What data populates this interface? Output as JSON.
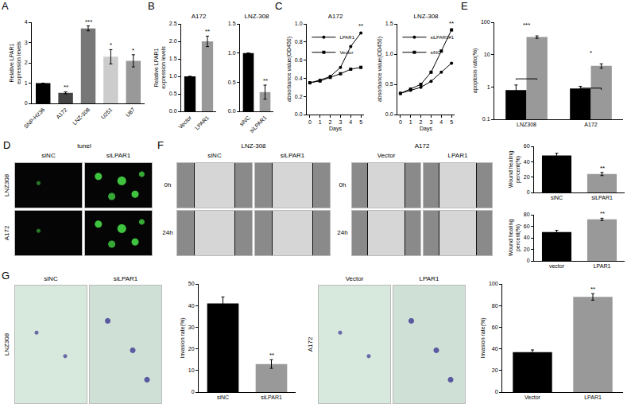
{
  "panel_letters": [
    "A",
    "B",
    "C",
    "D",
    "E",
    "F",
    "G"
  ],
  "chart_data": [
    {
      "type": "bar",
      "categories": [
        "SNP-H236",
        "A172",
        "LNZ-308",
        "U251",
        "U87"
      ],
      "values": [
        1,
        0.52,
        3.7,
        2.3,
        2.1
      ],
      "errors": [
        0,
        0.05,
        0.12,
        0.35,
        0.3
      ],
      "colors": [
        "#000000",
        "#444444",
        "#777777",
        "#cccccc",
        "#999999"
      ],
      "ylabel": "Relative LPAR1 expression levels",
      "ylim": [
        0,
        4
      ],
      "yticks": [
        0,
        1,
        2,
        3,
        4
      ],
      "annotations": [
        null,
        "**",
        "***",
        "*",
        "*"
      ],
      "grid": false
    },
    {
      "type": "bar",
      "title": "A172",
      "categories": [
        "Vector",
        "LPAR1"
      ],
      "values": [
        1,
        2.0
      ],
      "errors": [
        0,
        0.15
      ],
      "colors": [
        "#000000",
        "#999999"
      ],
      "ylabel": "Relative LPAR1 expression levels",
      "ylim": [
        0,
        2.5
      ],
      "yticks": [
        {
          "value": 0,
          "label": "0.0"
        },
        {
          "value": 0.5,
          "label": "0.5"
        },
        {
          "value": 1,
          "label": "1.0"
        },
        {
          "value": 1.5,
          "label": "1.5"
        },
        {
          "value": 2,
          "label": "2.0"
        },
        {
          "value": 2.5,
          "label": "2.5"
        }
      ],
      "annotations": [
        null,
        "**"
      ],
      "grid": false
    },
    {
      "type": "bar",
      "title": "LNZ-308",
      "categories": [
        "siNC",
        "siLPAR1"
      ],
      "values": [
        1,
        0.33
      ],
      "errors": [
        0,
        0.12
      ],
      "colors": [
        "#000000",
        "#999999"
      ],
      "ylim": [
        0,
        1.5
      ],
      "yticks": [
        {
          "value": 0,
          "label": "0.0"
        },
        {
          "value": 0.5,
          "label": "0.5"
        },
        {
          "value": 1,
          "label": "1.0"
        },
        {
          "value": 1.5,
          "label": "1.5"
        }
      ],
      "annotations": [
        null,
        "**"
      ],
      "grid": false
    },
    {
      "type": "line",
      "title": "A172",
      "x": [
        0,
        1,
        2,
        3,
        4,
        5
      ],
      "series": [
        {
          "name": "LPAR1",
          "color": "#000000",
          "marker": "circle",
          "line_style": "solid",
          "values": [
            0.35,
            0.38,
            0.42,
            0.52,
            0.75,
            0.9
          ]
        },
        {
          "name": "Vector",
          "color": "#000000",
          "marker": "square",
          "line_style": "solid",
          "values": [
            0.35,
            0.37,
            0.41,
            0.45,
            0.5,
            0.52
          ]
        }
      ],
      "xlabel": "Days",
      "ylabel": "absorbance value(OD450)",
      "xlim": [
        -0.3,
        5.3
      ],
      "xticks": [
        0,
        1,
        2,
        3,
        4,
        5
      ],
      "ylim": [
        0,
        1
      ],
      "yticks": [
        {
          "value": 0,
          "label": "0.0"
        },
        {
          "value": 0.2,
          "label": "0.2"
        },
        {
          "value": 0.4,
          "label": "0.4"
        },
        {
          "value": 0.6,
          "label": "0.6"
        },
        {
          "value": 0.8,
          "label": "0.8"
        },
        {
          "value": 1,
          "label": "1.0"
        }
      ],
      "legend": "upper left",
      "annotations": [
        {
          "x": 5,
          "text": "**"
        }
      ],
      "grid": false
    },
    {
      "type": "line",
      "title": "LNZ-308",
      "x": [
        0,
        1,
        2,
        3,
        4,
        5
      ],
      "series": [
        {
          "name": "siLPAR1#1",
          "color": "#000000",
          "marker": "circle",
          "line_style": "solid",
          "values": [
            0.35,
            0.4,
            0.45,
            0.55,
            0.7,
            0.85
          ]
        },
        {
          "name": "siNC",
          "color": "#000000",
          "marker": "square",
          "line_style": "solid",
          "values": [
            0.35,
            0.42,
            0.5,
            0.7,
            1.05,
            1.4
          ]
        }
      ],
      "xlabel": "Days",
      "ylabel": "absorbance value(OD450)",
      "xlim": [
        -0.3,
        5.3
      ],
      "xticks": [
        0,
        1,
        2,
        3,
        4,
        5
      ],
      "ylim": [
        0,
        1.5
      ],
      "yticks": [
        {
          "value": 0,
          "label": "0.0"
        },
        {
          "value": 0.5,
          "label": "0.5"
        },
        {
          "value": 1,
          "label": "1.0"
        },
        {
          "value": 1.5,
          "label": "1.5"
        }
      ],
      "legend": "upper left",
      "annotations": [
        {
          "x": 5,
          "text": "**"
        }
      ],
      "grid": false
    },
    {
      "type": "bar",
      "categories": [
        "LNZ308",
        "A172"
      ],
      "series": [
        {
          "color": "#000000",
          "values": [
            0.8,
            0.9
          ],
          "errors": [
            0.35,
            0.15
          ]
        },
        {
          "color": "#999999",
          "values": [
            35,
            4.5
          ],
          "errors": [
            3,
            0.7
          ]
        }
      ],
      "ylabel": "apoptosis ratio(%)",
      "log": "y",
      "ylim": [
        0.1,
        100
      ],
      "yticks": [
        0.1,
        1,
        10,
        100
      ],
      "annotations": [
        "***",
        "*"
      ],
      "grid": false
    },
    {
      "type": "bar",
      "categories": [
        "siNC",
        "siLPAR1"
      ],
      "values": [
        48,
        24
      ],
      "errors": [
        3,
        2
      ],
      "colors": [
        "#000000",
        "#999999"
      ],
      "ylabel": "Wound healing percent(%)",
      "ylim": [
        0,
        60
      ],
      "yticks": [
        0,
        20,
        40,
        60
      ],
      "annotations": [
        null,
        "**"
      ],
      "grid": false
    },
    {
      "type": "bar",
      "categories": [
        "vector",
        "LPAR1"
      ],
      "values": [
        50,
        72
      ],
      "errors": [
        3,
        2
      ],
      "colors": [
        "#000000",
        "#999999"
      ],
      "ylabel": "Wound healing percent(%)",
      "ylim": [
        0,
        80
      ],
      "yticks": [
        0,
        20,
        40,
        60,
        80
      ],
      "annotations": [
        null,
        "**"
      ],
      "grid": false
    },
    {
      "type": "bar",
      "categories": [
        "siNC",
        "siLPAR1"
      ],
      "values": [
        41,
        13
      ],
      "errors": [
        3,
        2
      ],
      "colors": [
        "#000000",
        "#999999"
      ],
      "ylabel": "Invasion rate(%)",
      "ylim": [
        0,
        50
      ],
      "yticks": [
        0,
        10,
        20,
        30,
        40,
        50
      ],
      "annotations": [
        null,
        "**"
      ],
      "grid": false
    },
    {
      "type": "bar",
      "categories": [
        "Vector",
        "LPAR1"
      ],
      "values": [
        37,
        88
      ],
      "errors": [
        2,
        3
      ],
      "colors": [
        "#000000",
        "#999999"
      ],
      "ylabel": "Invasion rate(%)",
      "ylim": [
        0,
        100
      ],
      "yticks": [
        0,
        20,
        40,
        60,
        80,
        100
      ],
      "annotations": [
        null,
        "**"
      ],
      "grid": false
    }
  ],
  "images": [
    {
      "title": "tunel",
      "columns": [
        "siNC",
        "siLPAR1"
      ],
      "rows": [
        "LNZ308",
        "A172"
      ]
    },
    {
      "groups": [
        {
          "title": "LNZ-308",
          "columns": [
            "siNC",
            "siLPAR1"
          ]
        },
        {
          "title": "A172",
          "columns": [
            "Vector",
            "LPAR1"
          ]
        }
      ],
      "rows": [
        "0h",
        "24h"
      ]
    },
    {
      "groups": [
        {
          "row": "LNZ308",
          "columns": [
            "siNC",
            "siLPAR1"
          ]
        },
        {
          "row": "A172",
          "columns": [
            "Vector",
            "LPAR1"
          ]
        }
      ]
    }
  ]
}
